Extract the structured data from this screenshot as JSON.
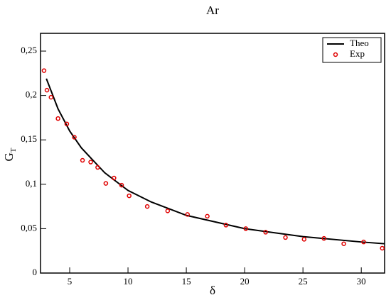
{
  "chart_data": {
    "type": "line",
    "title": "Ar",
    "xlabel": "δ",
    "ylabel": "G",
    "ylabel_sub": "T",
    "xlim": [
      2.5,
      32
    ],
    "ylim": [
      0,
      0.27
    ],
    "xticks": [
      5,
      10,
      15,
      20,
      25,
      30
    ],
    "yticks": [
      0,
      {
        "value": 0.05,
        "label": "0,05"
      },
      {
        "value": 0.1,
        "label": "0,1"
      },
      {
        "value": 0.15,
        "label": "0,15"
      },
      {
        "value": 0.2,
        "label": "0,2"
      },
      {
        "value": 0.25,
        "label": "0,25"
      }
    ],
    "legend": "upper right",
    "series": [
      {
        "name": "Theo",
        "color": "#000000",
        "mode": "line",
        "x": [
          3,
          4,
          5,
          6,
          8,
          10,
          12,
          15,
          20,
          25,
          30,
          32
        ],
        "values": [
          0.219,
          0.185,
          0.16,
          0.141,
          0.113,
          0.093,
          0.08,
          0.065,
          0.05,
          0.041,
          0.035,
          0.033
        ]
      },
      {
        "name": "Exp",
        "color": "#e00000",
        "mode": "markers",
        "x": [
          2.8,
          3.05,
          3.4,
          4.0,
          4.75,
          5.4,
          6.1,
          6.8,
          7.4,
          8.1,
          8.8,
          9.45,
          10.1,
          11.65,
          13.4,
          15.1,
          16.8,
          18.4,
          20.1,
          21.8,
          23.5,
          25.1,
          26.8,
          28.5,
          30.2,
          31.8
        ],
        "values": [
          0.228,
          0.206,
          0.198,
          0.174,
          0.168,
          0.153,
          0.127,
          0.125,
          0.119,
          0.101,
          0.107,
          0.099,
          0.087,
          0.075,
          0.07,
          0.066,
          0.064,
          0.054,
          0.05,
          0.046,
          0.04,
          0.038,
          0.039,
          0.033,
          0.035,
          0.028
        ]
      }
    ]
  }
}
